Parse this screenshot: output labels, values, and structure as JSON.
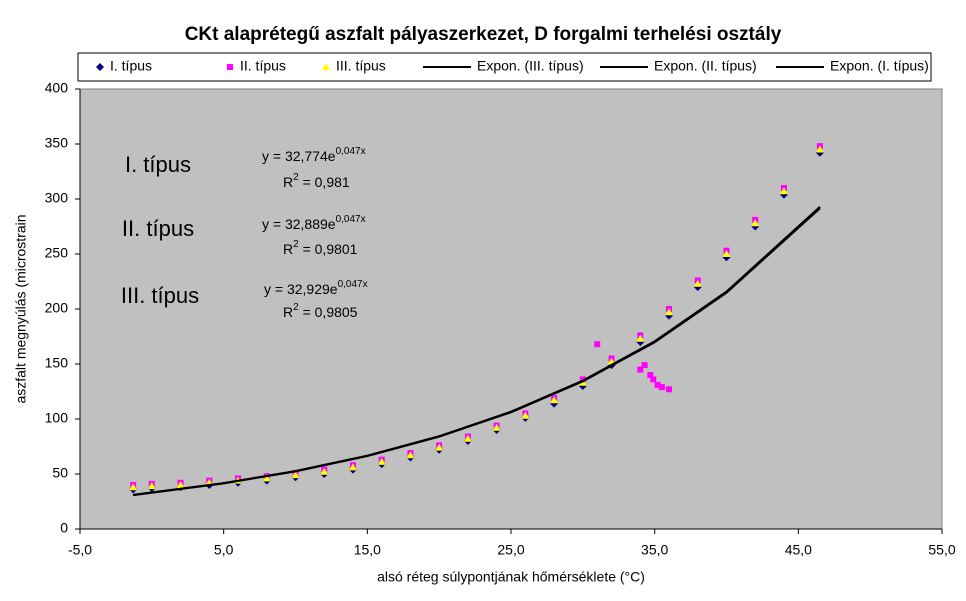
{
  "chart_data": {
    "type": "scatter",
    "title": "CKt alaprétegű aszfalt pályaszerkezet, D forgalmi terhelési osztály",
    "xlabel": "alsó réteg súlypontjának hőmérséklete (°C)",
    "ylabel": "aszfalt megnyúlás (microstrain",
    "xlim": [
      -5,
      55
    ],
    "xticks": [
      {
        "value": -5,
        "label": "-5,0"
      },
      {
        "value": 5,
        "label": "5,0"
      },
      {
        "value": 15,
        "label": "15,0"
      },
      {
        "value": 25,
        "label": "25,0"
      },
      {
        "value": 35,
        "label": "35,0"
      },
      {
        "value": 45,
        "label": "45,0"
      },
      {
        "value": 55,
        "label": "55,0"
      }
    ],
    "ylim": [
      0,
      400
    ],
    "yticks": [
      0,
      50,
      100,
      150,
      200,
      250,
      300,
      350,
      400
    ],
    "grid": false,
    "legend": "top",
    "series": [
      {
        "name": "I. típus",
        "color": "#000080",
        "marker": "diamond",
        "x": [
          -1.3,
          0,
          2,
          4,
          6,
          8,
          10,
          12,
          14,
          16,
          18,
          20,
          22,
          24,
          26,
          28,
          30,
          32,
          34,
          36,
          38,
          40,
          42,
          44,
          46.5
        ],
        "values": [
          36,
          37,
          38,
          40,
          42,
          44,
          47,
          50,
          54,
          59,
          65,
          72,
          80,
          90,
          101,
          114,
          130,
          149,
          170,
          194,
          220,
          247,
          275,
          304,
          342
        ]
      },
      {
        "name": "II. típus",
        "color": "#ff00ff",
        "marker": "square",
        "x": [
          -1.3,
          0,
          2,
          4,
          6,
          8,
          10,
          12,
          14,
          16,
          18,
          20,
          22,
          24,
          26,
          28,
          30,
          32,
          34,
          36,
          38,
          40,
          42,
          44,
          46.5,
          31,
          34,
          34.3,
          34.7,
          34.9,
          35.2,
          35.5,
          36
        ],
        "values": [
          40,
          41,
          42,
          44,
          46,
          48,
          51,
          54,
          58,
          63,
          69,
          76,
          84,
          94,
          105,
          119,
          136,
          155,
          176,
          200,
          226,
          253,
          281,
          310,
          348,
          168,
          145,
          149,
          140,
          136,
          131,
          129,
          127
        ]
      },
      {
        "name": "III. típus",
        "color": "#ffff00",
        "marker": "triangle",
        "x": [
          -1.3,
          0,
          2,
          4,
          6,
          8,
          10,
          12,
          14,
          16,
          18,
          20,
          22,
          24,
          26,
          28,
          30,
          32,
          34,
          36,
          38,
          40,
          42,
          44,
          46.5
        ],
        "values": [
          38,
          39,
          40,
          42,
          44,
          46,
          49,
          52,
          56,
          61,
          67,
          74,
          82,
          92,
          103,
          117,
          133,
          152,
          173,
          197,
          223,
          250,
          278,
          307,
          345
        ]
      },
      {
        "name": "Expon. (III. típus)",
        "color": "#000000",
        "marker": "line",
        "x": [
          -1.3,
          5,
          10,
          15,
          20,
          25,
          30,
          35,
          40,
          46.5
        ],
        "values": [
          31.0,
          41.7,
          52.6,
          66.6,
          84.3,
          106.6,
          134.9,
          170.6,
          215.8,
          292.9
        ]
      },
      {
        "name": "Expon. (II. típus)",
        "color": "#000000",
        "marker": "line",
        "x": [
          -1.3,
          5,
          10,
          15,
          20,
          25,
          30,
          35,
          40,
          46.5
        ],
        "values": [
          30.9,
          41.6,
          52.6,
          66.6,
          84.2,
          106.5,
          134.7,
          170.4,
          215.5,
          292.5
        ]
      },
      {
        "name": "Expon. (I. típus)",
        "color": "#000000",
        "marker": "line",
        "x": [
          -1.3,
          5,
          10,
          15,
          20,
          25,
          30,
          35,
          40,
          46.5
        ],
        "values": [
          30.8,
          41.5,
          52.4,
          66.3,
          83.9,
          106.1,
          134.2,
          169.8,
          214.8,
          291.5
        ]
      }
    ],
    "annotations": [
      {
        "label": "I. típus",
        "equation": "y = 32,774e",
        "exponent": "0,047x",
        "r": "R",
        "r_power": "2",
        "r_value": " = 0,981"
      },
      {
        "label": "II. típus",
        "equation": "y = 32,889e",
        "exponent": "0,047x",
        "r": "R",
        "r_power": "2",
        "r_value": " = 0,9801"
      },
      {
        "label": "III. típus",
        "equation": "y = 32,929e",
        "exponent": "0,047x",
        "r": "R",
        "r_power": "2",
        "r_value": " = 0,9805"
      }
    ]
  }
}
